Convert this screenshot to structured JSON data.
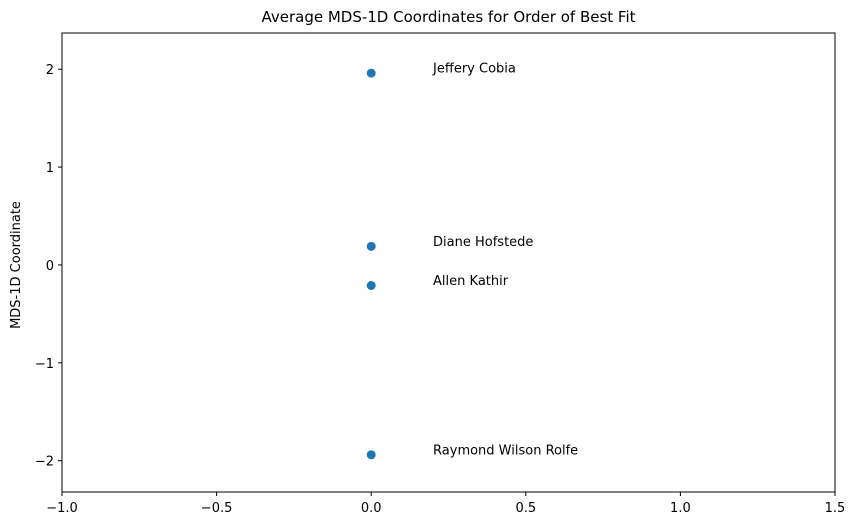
{
  "chart_data": {
    "type": "scatter",
    "title": "Average MDS-1D Coordinates for Order of Best Fit",
    "xlabel": "",
    "ylabel": "MDS-1D Coordinate",
    "xlim": [
      -1.0,
      1.5
    ],
    "ylim": [
      -2.32,
      2.37
    ],
    "xticks": [
      -1.0,
      -0.5,
      0.0,
      0.5,
      1.0,
      1.5
    ],
    "xtick_labels": [
      "−1.0",
      "−0.5",
      "0.0",
      "0.5",
      "1.0",
      "1.5"
    ],
    "yticks": [
      -2,
      -1,
      0,
      1,
      2
    ],
    "ytick_labels": [
      "−2",
      "−1",
      "0",
      "1",
      "2"
    ],
    "grid": false,
    "marker_color": "#1f77b4",
    "points": [
      {
        "x": 0.0,
        "y": 1.96,
        "label": "Jeffery Cobia"
      },
      {
        "x": 0.0,
        "y": 0.19,
        "label": "Diane Hofstede"
      },
      {
        "x": 0.0,
        "y": -0.21,
        "label": "Allen Kathir"
      },
      {
        "x": 0.0,
        "y": -1.94,
        "label": "Raymond Wilson Rolfe"
      }
    ]
  }
}
